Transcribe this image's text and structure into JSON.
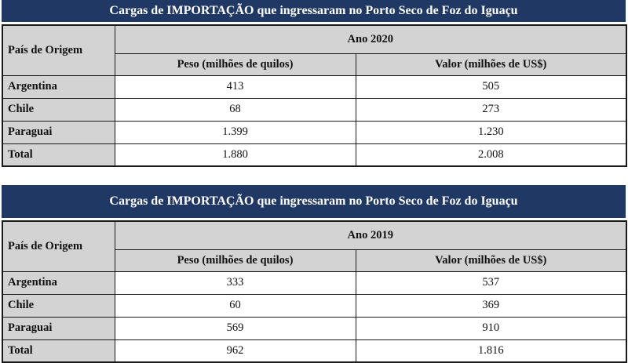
{
  "colors": {
    "title_bar_bg": "#1f3864",
    "title_bar_text": "#ffffff",
    "header_cell_bg": "#d3d3d3",
    "border": "#1a1a1a",
    "data_cell_bg": "#ffffff"
  },
  "tables": [
    {
      "title": "Cargas de IMPORTAÇÃO que ingressaram no Porto Seco de Foz do Iguaçu",
      "year_label": "Ano 2020",
      "origin_header": "País de Origem",
      "col_headers": [
        "Peso (milhões de quilos)",
        "Valor (milhões de US$)"
      ],
      "rows": [
        {
          "country": "Argentina",
          "peso": "413",
          "valor": "505"
        },
        {
          "country": "Chile",
          "peso": "68",
          "valor": "273"
        },
        {
          "country": "Paraguai",
          "peso": "1.399",
          "valor": "1.230"
        },
        {
          "country": "Total",
          "peso": "1.880",
          "valor": "2.008"
        }
      ]
    },
    {
      "title": "Cargas de IMPORTAÇÃO que ingressaram no Porto Seco de Foz do Iguaçu",
      "year_label": "Ano 2019",
      "origin_header": "País de Origem",
      "col_headers": [
        "Peso (milhões de quilos)",
        "Valor (milhões de US$)"
      ],
      "rows": [
        {
          "country": "Argentina",
          "peso": "333",
          "valor": "537"
        },
        {
          "country": "Chile",
          "peso": "60",
          "valor": "369"
        },
        {
          "country": "Paraguai",
          "peso": "569",
          "valor": "910"
        },
        {
          "country": "Total",
          "peso": "962",
          "valor": "1.816"
        }
      ]
    }
  ]
}
